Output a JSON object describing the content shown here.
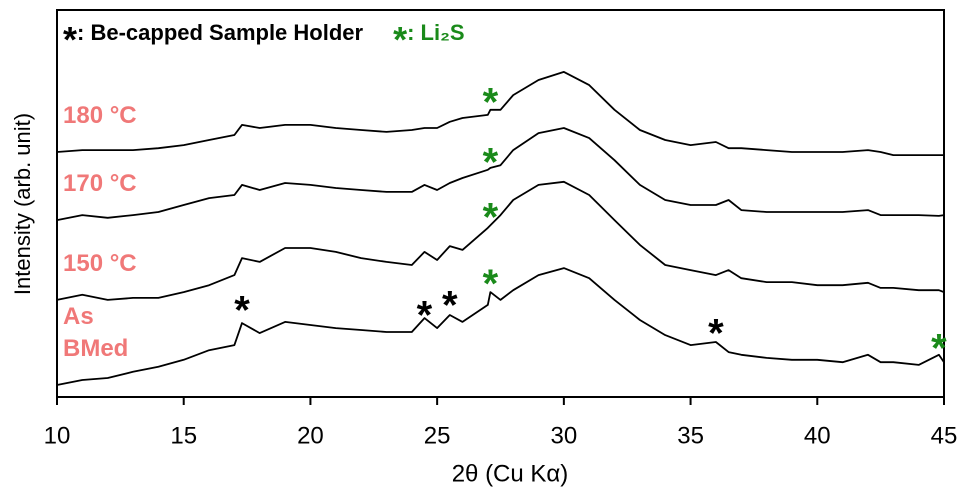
{
  "chart_data": {
    "type": "line",
    "xlabel": "2θ (Cu Kα)",
    "ylabel": "Intensity (arb. unit)",
    "xlim": [
      10,
      45
    ],
    "xticks": [
      10,
      15,
      20,
      25,
      30,
      35,
      40,
      45
    ],
    "ylim": [
      0,
      100
    ],
    "legend": [
      {
        "symbol": "*",
        "text": ": Be-capped Sample Holder",
        "color": "#000000"
      },
      {
        "symbol": "*",
        "text": ": Li₂S",
        "color": "#1a8a1a"
      }
    ],
    "x": [
      10,
      11,
      12,
      13,
      14,
      15,
      16,
      17,
      17.3,
      18,
      19,
      20,
      21,
      22,
      23,
      24,
      24.5,
      25,
      25.5,
      26,
      27,
      27.1,
      27.5,
      28,
      29,
      30,
      31,
      32,
      33,
      34,
      35,
      36,
      36.5,
      37,
      38,
      39,
      40,
      41,
      42,
      42.5,
      43,
      44,
      44.8,
      45
    ],
    "series": [
      {
        "name": "As BMed",
        "color": "#000000",
        "label_color": "#f07878",
        "values": [
          3.1,
          4.4,
          4.9,
          6.5,
          7.8,
          9.6,
          12.1,
          13.4,
          19.1,
          16.5,
          19.4,
          18.6,
          17.8,
          17.3,
          16.8,
          16.8,
          20.4,
          17.8,
          21.2,
          19.4,
          23.8,
          27.1,
          25.1,
          27.6,
          31.5,
          33.3,
          30.7,
          25.1,
          19.9,
          16.0,
          13.4,
          14.2,
          11.6,
          10.9,
          10.1,
          9.6,
          9.6,
          9.0,
          10.9,
          9.0,
          9.0,
          8.3,
          10.9,
          9.0
        ]
      },
      {
        "name": "150 °C",
        "color": "#000000",
        "label_color": "#f07878",
        "values": [
          25.1,
          26.4,
          25.1,
          25.6,
          25.6,
          27.1,
          28.9,
          31.5,
          35.9,
          34.9,
          38.5,
          38.5,
          37.5,
          35.9,
          34.9,
          34.1,
          37.5,
          35.4,
          39.0,
          38.0,
          43.7,
          44.4,
          47.0,
          50.9,
          54.8,
          55.6,
          52.2,
          45.7,
          39.3,
          34.1,
          32.8,
          31.5,
          32.8,
          30.7,
          29.7,
          29.7,
          28.9,
          28.9,
          29.5,
          28.2,
          28.2,
          27.6,
          27.6,
          27.1
        ]
      },
      {
        "name": "170 °C",
        "color": "#000000",
        "label_color": "#f07878",
        "values": [
          45.7,
          47.0,
          46.3,
          47.0,
          47.8,
          49.6,
          51.4,
          52.2,
          54.8,
          53.5,
          55.3,
          54.8,
          54.0,
          53.5,
          53.0,
          53.0,
          54.8,
          53.5,
          55.3,
          56.6,
          58.7,
          59.2,
          59.9,
          63.8,
          68.2,
          69.5,
          66.9,
          61.2,
          54.8,
          50.9,
          49.6,
          49.6,
          50.9,
          48.3,
          47.8,
          47.8,
          47.8,
          47.8,
          48.3,
          47.0,
          47.0,
          47.0,
          46.8,
          47.0
        ]
      },
      {
        "name": "180 °C",
        "color": "#000000",
        "label_color": "#f07878",
        "values": [
          63.3,
          63.8,
          63.8,
          63.8,
          64.3,
          65.1,
          66.4,
          67.7,
          70.3,
          69.5,
          70.3,
          70.3,
          69.5,
          69.0,
          68.5,
          69.0,
          69.5,
          69.5,
          71.1,
          72.1,
          72.9,
          74.2,
          74.2,
          78.0,
          81.9,
          84.0,
          80.6,
          74.2,
          69.0,
          66.4,
          65.1,
          65.9,
          64.3,
          64.3,
          63.8,
          63.3,
          63.3,
          63.3,
          63.8,
          63.3,
          62.5,
          62.5,
          62.5,
          62.5
        ]
      }
    ],
    "markers": [
      {
        "text": "*",
        "x": 17.3,
        "y": 23.8,
        "color": "#000000"
      },
      {
        "text": "*",
        "x": 24.5,
        "y": 22.5,
        "color": "#000000"
      },
      {
        "text": "*",
        "x": 25.5,
        "y": 25.1,
        "color": "#000000"
      },
      {
        "text": "*",
        "x": 36.0,
        "y": 17.8,
        "color": "#000000"
      },
      {
        "text": "*",
        "x": 27.1,
        "y": 30.7,
        "color": "#1a8a1a"
      },
      {
        "text": "*",
        "x": 27.1,
        "y": 47.8,
        "color": "#1a8a1a"
      },
      {
        "text": "*",
        "x": 27.1,
        "y": 62.0,
        "color": "#1a8a1a"
      },
      {
        "text": "*",
        "x": 27.1,
        "y": 77.5,
        "color": "#1a8a1a"
      },
      {
        "text": "*",
        "x": 44.8,
        "y": 14.0,
        "color": "#1a8a1a"
      }
    ]
  }
}
